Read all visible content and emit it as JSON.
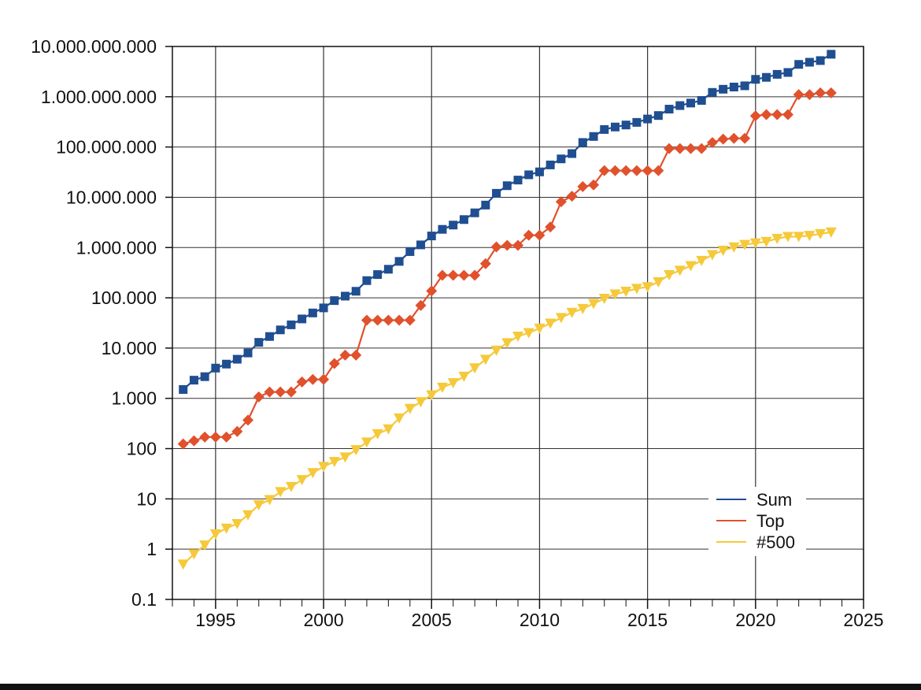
{
  "chart_data": {
    "type": "line",
    "title": "",
    "xlabel": "",
    "ylabel": "",
    "y_scale": "log",
    "xlim": [
      1993,
      2025
    ],
    "ylim": [
      0.1,
      10000000000
    ],
    "grid": true,
    "legend_position": "bottom-right",
    "x_ticks": [
      {
        "value": 1995,
        "label": "1995"
      },
      {
        "value": 2000,
        "label": "2000"
      },
      {
        "value": 2005,
        "label": "2005"
      },
      {
        "value": 2010,
        "label": "2010"
      },
      {
        "value": 2015,
        "label": "2015"
      },
      {
        "value": 2020,
        "label": "2020"
      },
      {
        "value": 2025,
        "label": "2025"
      }
    ],
    "y_ticks": [
      {
        "value": 0.1,
        "label": "0.1"
      },
      {
        "value": 1,
        "label": "1"
      },
      {
        "value": 10,
        "label": "10"
      },
      {
        "value": 100,
        "label": "100"
      },
      {
        "value": 1000,
        "label": "1.000"
      },
      {
        "value": 10000,
        "label": "10.000"
      },
      {
        "value": 100000,
        "label": "100.000"
      },
      {
        "value": 1000000,
        "label": "1.000.000"
      },
      {
        "value": 10000000,
        "label": "10.000.000"
      },
      {
        "value": 100000000,
        "label": "100.000.000"
      },
      {
        "value": 1000000000,
        "label": "1.000.000.000"
      },
      {
        "value": 10000000000,
        "label": "10.000.000.000"
      }
    ],
    "x": [
      1993.5,
      1994,
      1994.5,
      1995,
      1995.5,
      1996,
      1996.5,
      1997,
      1997.5,
      1998,
      1998.5,
      1999,
      1999.5,
      2000,
      2000.5,
      2001,
      2001.5,
      2002,
      2002.5,
      2003,
      2003.5,
      2004,
      2004.5,
      2005,
      2005.5,
      2006,
      2006.5,
      2007,
      2007.5,
      2008,
      2008.5,
      2009,
      2009.5,
      2010,
      2010.5,
      2011,
      2011.5,
      2012,
      2012.5,
      2013,
      2013.5,
      2014,
      2014.5,
      2015,
      2015.5,
      2016,
      2016.5,
      2017,
      2017.5,
      2018,
      2018.5,
      2019,
      2019.5,
      2020,
      2020.5,
      2021,
      2021.5,
      2022,
      2022.5,
      2023,
      2023.5
    ],
    "series": [
      {
        "name": "Sum",
        "color": "#1f4e91",
        "marker": "square",
        "values": [
          1500,
          2300,
          2700,
          4000,
          4800,
          6000,
          8000,
          13000,
          17000,
          23000,
          29000,
          38000,
          50000,
          63000,
          88000,
          108000,
          135000,
          220000,
          290000,
          370000,
          530000,
          830000,
          1130000,
          1700000,
          2300000,
          2800000,
          3600000,
          4900000,
          7000000,
          12000000,
          17000000,
          22000000,
          28000000,
          32000000,
          44000000,
          58000000,
          74000000,
          123000000,
          162000000,
          223000000,
          250000000,
          274000000,
          309000000,
          361000000,
          423000000,
          567000000,
          667000000,
          749000000,
          845000000,
          1220000000,
          1410000000,
          1560000000,
          1650000000,
          2220000000,
          2430000000,
          2790000000,
          3040000000,
          4400000000,
          4860000000,
          5240000000,
          7000000000
        ]
      },
      {
        "name": "Top",
        "color": "#e0512c",
        "marker": "diamond",
        "values": [
          124,
          143,
          170,
          170,
          170,
          220,
          368,
          1068,
          1338,
          1338,
          1338,
          2121,
          2379,
          2379,
          4938,
          7226,
          7226,
          35860,
          35860,
          35860,
          35860,
          35860,
          70720,
          136800,
          280600,
          280600,
          280600,
          280600,
          478200,
          1026000,
          1105000,
          1105000,
          1759000,
          1759000,
          2566000,
          8162000,
          10510000,
          16324000,
          17590000,
          33860000,
          33860000,
          33860000,
          33860000,
          33860000,
          33860000,
          93015000,
          93015000,
          93015000,
          93015000,
          122300000,
          143500000,
          148600000,
          148600000,
          415530000,
          442010000,
          442010000,
          442010000,
          1102000000,
          1102000000,
          1194000000,
          1194000000
        ]
      },
      {
        "name": "#500",
        "color": "#f5c93a",
        "marker": "triangle-down",
        "values": [
          0.5,
          0.8,
          1.2,
          2.0,
          2.6,
          3.2,
          4.8,
          7.6,
          9.6,
          13.8,
          17.5,
          24.0,
          33.0,
          43.8,
          55.1,
          67.8,
          94.3,
          134.3,
          196.0,
          245.1,
          403.4,
          624.0,
          850.6,
          1166.0,
          1646.0,
          2026.0,
          2737.0,
          4005.0,
          5929.0,
          9000.0,
          12640.0,
          17100.0,
          20050.0,
          24670.0,
          31120.0,
          40190.0,
          50940.0,
          60820.0,
          76500.0,
          96620.0,
          117800.0,
          133700.0,
          152500.0,
          164900.0,
          206400.0,
          286100.0,
          349300.0,
          432200.0,
          548700.0,
          715600.0,
          873700.0,
          1021000.0,
          1142000.0,
          1228000.0,
          1310000.0,
          1512000.0,
          1646000.0,
          1649000.0,
          1730000.0,
          1870000.0,
          2020000.0
        ]
      }
    ]
  }
}
